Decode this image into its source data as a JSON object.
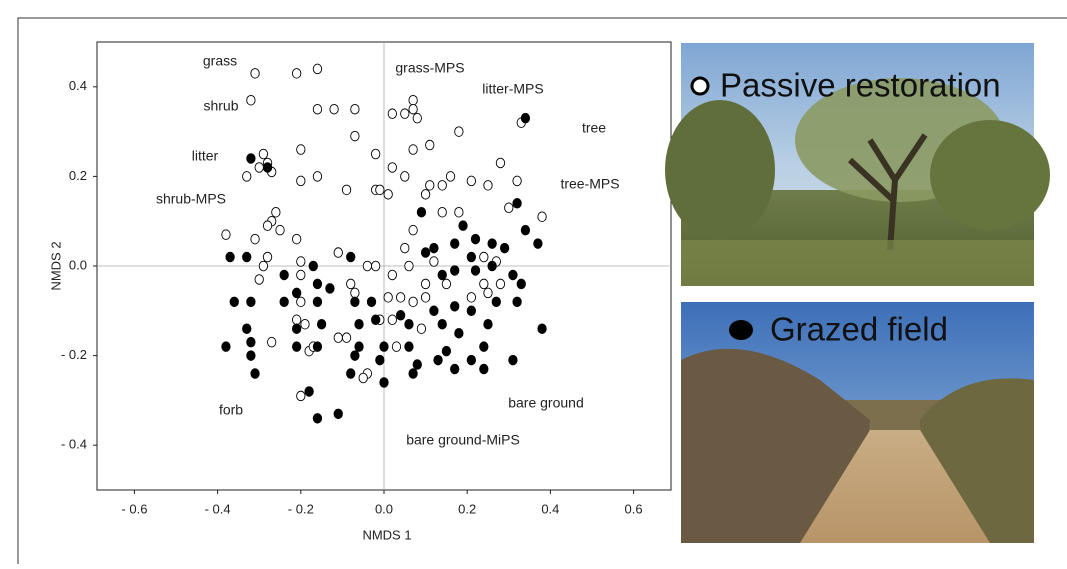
{
  "chart_data": {
    "type": "scatter",
    "xlabel": "NMDS 1",
    "ylabel": "NMDS 2",
    "xlim": [
      -0.69,
      0.69
    ],
    "ylim": [
      -0.5,
      0.5
    ],
    "xticks": [
      {
        "value": -0.6,
        "label": "- 0.6"
      },
      {
        "value": -0.4,
        "label": "- 0.4"
      },
      {
        "value": -0.2,
        "label": "- 0.2"
      },
      {
        "value": 0,
        "label": "0.0"
      },
      0.2,
      0.4,
      0.6
    ],
    "yticks": [
      0.4,
      0.2,
      {
        "value": 0,
        "label": "0.0"
      },
      {
        "value": -0.2,
        "label": "- 0.2"
      },
      {
        "value": -0.4,
        "label": "- 0.4"
      }
    ],
    "annotations": [
      "grass",
      "shrub",
      "litter",
      "shrub-MPS",
      "grass-MPS",
      "litter-MPS",
      "tree",
      "tree-MPS",
      "forb",
      "bare ground",
      "bare ground-MiPS"
    ],
    "series": [
      {
        "name": "Passive restoration",
        "color": "#ffffff",
        "x": [
          -0.31,
          -0.21,
          -0.16,
          -0.32,
          -0.16,
          -0.12,
          -0.07,
          -0.07,
          0.07,
          0.02,
          0.05,
          0.08,
          0.07,
          0.18,
          0.33,
          -0.2,
          -0.02,
          -0.29,
          -0.28,
          -0.3,
          -0.27,
          -0.33,
          0.07,
          0.11,
          0.02,
          0.28,
          -0.16,
          -0.2,
          -0.09,
          -0.02,
          -0.01,
          0.05,
          0.11,
          0.14,
          0.16,
          0.21,
          0.25,
          0.32,
          0.1,
          0.01,
          0.14,
          0.18,
          0.3,
          0.38,
          -0.26,
          -0.27,
          -0.28,
          -0.25,
          -0.38,
          -0.31,
          -0.21,
          0.07,
          0.05,
          -0.11,
          -0.28,
          -0.29,
          -0.2,
          -0.04,
          -0.02,
          0.02,
          0.06,
          0.12,
          0.24,
          0.27,
          -0.3,
          -0.2,
          -0.08,
          0.1,
          0.15,
          0.24,
          0.28,
          -0.2,
          -0.07,
          0.01,
          0.04,
          0.07,
          0.1,
          0.21,
          0.25,
          -0.21,
          -0.19,
          -0.01,
          0.02,
          0.09,
          -0.11,
          -0.09,
          -0.27,
          -0.18,
          -0.17,
          0.03,
          -0.04,
          -0.05,
          -0.2
        ],
        "y": [
          0.43,
          0.43,
          0.44,
          0.37,
          0.35,
          0.35,
          0.35,
          0.29,
          0.37,
          0.34,
          0.34,
          0.33,
          0.35,
          0.3,
          0.32,
          0.26,
          0.25,
          0.25,
          0.23,
          0.22,
          0.21,
          0.2,
          0.26,
          0.27,
          0.22,
          0.23,
          0.2,
          0.19,
          0.17,
          0.17,
          0.17,
          0.2,
          0.18,
          0.18,
          0.2,
          0.19,
          0.18,
          0.19,
          0.16,
          0.16,
          0.12,
          0.12,
          0.13,
          0.11,
          0.12,
          0.1,
          0.09,
          0.08,
          0.07,
          0.06,
          0.06,
          0.08,
          0.04,
          0.03,
          0.02,
          0,
          0.01,
          0,
          0,
          -0.02,
          0,
          0.01,
          0.02,
          0.01,
          -0.03,
          -0.02,
          -0.04,
          -0.04,
          -0.04,
          -0.04,
          -0.04,
          -0.08,
          -0.06,
          -0.07,
          -0.07,
          -0.08,
          -0.07,
          -0.07,
          -0.06,
          -0.12,
          -0.13,
          -0.12,
          -0.12,
          -0.14,
          -0.16,
          -0.16,
          -0.17,
          -0.19,
          -0.18,
          -0.18,
          -0.24,
          -0.25,
          -0.29
        ]
      },
      {
        "name": "Grazed field",
        "color": "#000000",
        "x": [
          0.34,
          -0.32,
          -0.28,
          0.09,
          0.19,
          0.32,
          0.34,
          0.37,
          -0.37,
          -0.33,
          -0.17,
          -0.08,
          0.12,
          0.17,
          0.22,
          0.26,
          0.29,
          0.1,
          0.21,
          0.26,
          0.31,
          0.33,
          -0.24,
          -0.16,
          0.14,
          0.17,
          0.22,
          -0.36,
          -0.32,
          -0.24,
          -0.21,
          -0.16,
          -0.07,
          -0.03,
          0.04,
          0.12,
          0.17,
          0.21,
          0.27,
          0.32,
          -0.33,
          -0.21,
          -0.15,
          -0.06,
          -0.02,
          0.06,
          0.14,
          0.18,
          0.25,
          0.38,
          -0.32,
          -0.21,
          -0.16,
          -0.06,
          0,
          0.06,
          0.15,
          0.24,
          -0.38,
          -0.32,
          -0.07,
          -0.01,
          0.08,
          0.13,
          0.21,
          0.24,
          0.31,
          -0.31,
          -0.08,
          0,
          0.07,
          0.17,
          -0.18,
          -0.11,
          -0.16,
          -0.13
        ],
        "y": [
          0.33,
          0.24,
          0.22,
          0.12,
          0.09,
          0.14,
          0.08,
          0.05,
          0.02,
          0.02,
          0,
          0.02,
          0.04,
          0.05,
          0.06,
          0.05,
          0.04,
          0.03,
          0.02,
          0,
          -0.02,
          -0.04,
          -0.02,
          -0.04,
          -0.02,
          -0.01,
          -0.01,
          -0.08,
          -0.08,
          -0.08,
          -0.06,
          -0.08,
          -0.08,
          -0.08,
          -0.11,
          -0.1,
          -0.09,
          -0.1,
          -0.08,
          -0.08,
          -0.14,
          -0.14,
          -0.13,
          -0.13,
          -0.12,
          -0.13,
          -0.13,
          -0.15,
          -0.13,
          -0.14,
          -0.17,
          -0.18,
          -0.18,
          -0.18,
          -0.18,
          -0.18,
          -0.19,
          -0.18,
          -0.18,
          -0.2,
          -0.2,
          -0.21,
          -0.22,
          -0.21,
          -0.21,
          -0.23,
          -0.21,
          -0.24,
          -0.24,
          -0.26,
          -0.24,
          -0.23,
          -0.28,
          -0.33,
          -0.34,
          -0.05
        ]
      }
    ]
  }
}
